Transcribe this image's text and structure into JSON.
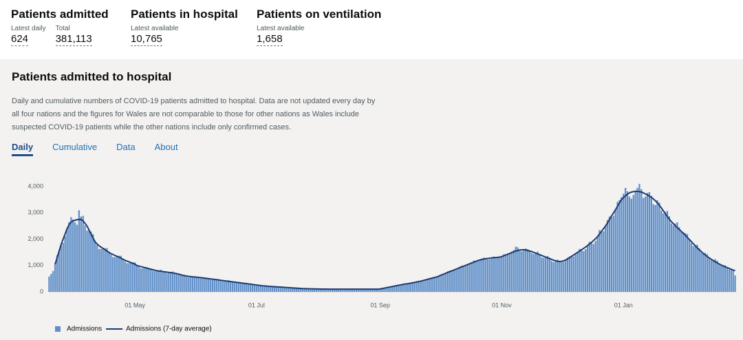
{
  "header": {
    "stats": [
      {
        "title": "Patients admitted",
        "items": [
          {
            "label": "Latest daily",
            "value": "624"
          },
          {
            "label": "Total",
            "value": "381,113"
          }
        ]
      },
      {
        "title": "Patients in hospital",
        "items": [
          {
            "label": "Latest available",
            "value": "10,765"
          }
        ]
      },
      {
        "title": "Patients on ventilation",
        "items": [
          {
            "label": "Latest available",
            "value": "1,658"
          }
        ]
      }
    ]
  },
  "card": {
    "title": "Patients admitted to hospital",
    "description": [
      "Daily and cumulative numbers of COVID-19 patients admitted to hospital. Data are not updated every day by",
      "all four nations and the figures for Wales are not comparable to those for other nations as Wales include",
      "suspected COVID-19 patients while the other nations include only confirmed cases."
    ],
    "tabs": [
      "Daily",
      "Cumulative",
      "Data",
      "About"
    ],
    "active_tab": 0
  },
  "chart_data": {
    "type": "bar",
    "categories": [
      null,
      null,
      null,
      null,
      null,
      null,
      null,
      null,
      null,
      null,
      null,
      null,
      null,
      null,
      null,
      null,
      null,
      null,
      null,
      null,
      null,
      null,
      null,
      null,
      null,
      null,
      null,
      null,
      null,
      null,
      null,
      null,
      null,
      null,
      null,
      null,
      null,
      null,
      null,
      null,
      null,
      null,
      null,
      "01 May",
      null,
      null,
      null,
      null,
      null,
      null,
      null,
      null,
      null,
      null,
      null,
      null,
      null,
      null,
      null,
      null,
      null,
      null,
      null,
      null,
      null,
      null,
      null,
      null,
      null,
      null,
      null,
      null,
      null,
      null,
      null,
      null,
      null,
      null,
      null,
      null,
      null,
      null,
      null,
      null,
      null,
      null,
      null,
      null,
      null,
      null,
      null,
      null,
      null,
      null,
      null,
      null,
      null,
      null,
      null,
      null,
      null,
      null,
      null,
      null,
      "01 Jul",
      null,
      null,
      null,
      null,
      null,
      null,
      null,
      null,
      null,
      null,
      null,
      null,
      null,
      null,
      null,
      null,
      null,
      null,
      null,
      null,
      null,
      null,
      null,
      null,
      null,
      null,
      null,
      null,
      null,
      null,
      null,
      null,
      null,
      null,
      null,
      null,
      null,
      null,
      null,
      null,
      null,
      null,
      null,
      null,
      null,
      null,
      null,
      null,
      null,
      null,
      null,
      null,
      null,
      null,
      null,
      null,
      null,
      null,
      null,
      null,
      null,
      "01 Sep",
      null,
      null,
      null,
      null,
      null,
      null,
      null,
      null,
      null,
      null,
      null,
      null,
      null,
      null,
      null,
      null,
      null,
      null,
      null,
      null,
      null,
      null,
      null,
      null,
      null,
      null,
      null,
      null,
      null,
      null,
      null,
      null,
      null,
      null,
      null,
      null,
      null,
      null,
      null,
      null,
      null,
      null,
      null,
      null,
      null,
      null,
      null,
      null,
      null,
      null,
      null,
      null,
      null,
      null,
      null,
      null,
      null,
      null,
      null,
      null,
      "01 Nov",
      null,
      null,
      null,
      null,
      null,
      null,
      null,
      null,
      null,
      null,
      null,
      null,
      null,
      null,
      null,
      null,
      null,
      null,
      null,
      null,
      null,
      null,
      null,
      null,
      null,
      null,
      null,
      null,
      null,
      null,
      null,
      null,
      null,
      null,
      null,
      null,
      null,
      null,
      null,
      null,
      null,
      null,
      null,
      null,
      null,
      null,
      null,
      null,
      null,
      null,
      null,
      null,
      null,
      null,
      null,
      null,
      null,
      null,
      null,
      null,
      "01 Jan",
      null,
      null,
      null,
      null,
      null,
      null,
      null,
      null,
      null,
      null,
      null,
      null,
      null,
      null,
      null,
      null,
      null,
      null,
      null,
      null,
      null,
      null,
      null,
      null,
      null,
      null,
      null,
      null,
      null,
      null,
      null,
      null,
      null,
      null,
      null,
      null,
      null,
      null,
      null,
      null,
      null,
      null,
      null,
      null,
      null,
      null,
      null,
      null,
      null,
      null,
      null,
      null,
      null,
      null,
      null,
      null
    ],
    "series": [
      {
        "name": "Admissions",
        "type": "bar",
        "color": "#5f8fc9",
        "values": [
          580,
          680,
          790,
          1090,
          1390,
          1580,
          1750,
          1860,
          2110,
          2420,
          2650,
          2840,
          2750,
          2640,
          2550,
          3100,
          2860,
          2890,
          2520,
          2330,
          2370,
          2290,
          2190,
          1940,
          1770,
          1630,
          1630,
          1670,
          1660,
          1660,
          1530,
          1410,
          1320,
          1320,
          1360,
          1370,
          1370,
          1260,
          1160,
          1090,
          1090,
          1120,
          1120,
          1120,
          1020,
          950,
          890,
          900,
          920,
          940,
          900,
          870,
          800,
          780,
          800,
          820,
          840,
          800,
          770,
          710,
          710,
          740,
          770,
          720,
          680,
          640,
          640,
          650,
          650,
          600,
          550,
          560,
          590,
          590,
          560,
          520,
          510,
          530,
          550,
          530,
          500,
          460,
          450,
          470,
          490,
          480,
          450,
          410,
          410,
          430,
          440,
          400,
          370,
          360,
          370,
          380,
          350,
          310,
          310,
          320,
          320,
          290,
          260,
          270,
          270,
          260,
          230,
          220,
          230,
          230,
          210,
          195,
          190,
          195,
          200,
          190,
          170,
          170,
          175,
          175,
          160,
          145,
          145,
          150,
          145,
          130,
          120,
          125,
          130,
          125,
          112,
          110,
          115,
          118,
          110,
          108,
          106,
          100,
          98,
          103,
          106,
          104,
          98,
          95,
          97,
          102,
          104,
          100,
          96,
          95,
          98,
          104,
          102,
          98,
          95,
          97,
          103,
          104,
          100,
          96,
          97,
          100,
          104,
          102,
          97,
          99,
          105,
          120,
          140,
          160,
          180,
          185,
          190,
          210,
          235,
          255,
          270,
          275,
          280,
          295,
          315,
          335,
          350,
          355,
          360,
          380,
          410,
          440,
          450,
          460,
          490,
          520,
          540,
          540,
          560,
          600,
          630,
          640,
          670,
          720,
          780,
          810,
          810,
          820,
          850,
          900,
          960,
          1000,
          990,
          1010,
          1030,
          1070,
          1130,
          1190,
          1170,
          1160,
          1190,
          1260,
          1300,
          1270,
          1230,
          1240,
          1300,
          1340,
          1310,
          1290,
          1300,
          1370,
          1430,
          1420,
          1420,
          1450,
          1530,
          1590,
          1720,
          1690,
          1560,
          1540,
          1600,
          1650,
          1620,
          1530,
          1470,
          1440,
          1490,
          1530,
          1430,
          1310,
          1290,
          1330,
          1360,
          1300,
          1170,
          1130,
          1180,
          1220,
          1160,
          1130,
          1140,
          1220,
          1300,
          1350,
          1360,
          1340,
          1420,
          1520,
          1630,
          1620,
          1550,
          1620,
          1780,
          1900,
          1870,
          1820,
          1930,
          2120,
          2350,
          2310,
          2300,
          2520,
          2730,
          2860,
          2840,
          2890,
          3130,
          3420,
          3490,
          3600,
          3730,
          3950,
          3820,
          3620,
          3540,
          3680,
          3840,
          3950,
          4100,
          3900,
          3570,
          3620,
          3760,
          3790,
          3650,
          3330,
          3300,
          3480,
          3390,
          3090,
          2980,
          3040,
          3070,
          2870,
          2600,
          2520,
          2600,
          2640,
          2450,
          2280,
          2260,
          2230,
          2200,
          2020,
          1850,
          1740,
          1780,
          1790,
          1650,
          1480,
          1440,
          1480,
          1430,
          1300,
          1200,
          1200,
          1240,
          1180,
          1050,
          1000,
          1020,
          1010,
          920,
          850,
          850,
          800,
          624
        ]
      },
      {
        "name": "Admissions (7-day average)",
        "type": "line",
        "color": "#1d3a6e",
        "values": [
          null,
          null,
          null,
          1050,
          1300,
          1550,
          1800,
          2000,
          2200,
          2400,
          2550,
          2650,
          2700,
          2720,
          2740,
          2750,
          2750,
          2700,
          2600,
          2500,
          2350,
          2200,
          2050,
          1900,
          1820,
          1750,
          1700,
          1650,
          1600,
          1550,
          1500,
          1450,
          1420,
          1380,
          1350,
          1320,
          1280,
          1240,
          1200,
          1170,
          1140,
          1110,
          1080,
          1050,
          1000,
          980,
          960,
          940,
          920,
          900,
          880,
          860,
          840,
          820,
          800,
          790,
          780,
          770,
          760,
          750,
          740,
          730,
          720,
          705,
          690,
          670,
          650,
          630,
          610,
          600,
          590,
          580,
          570,
          565,
          555,
          550,
          540,
          530,
          520,
          510,
          500,
          490,
          480,
          470,
          460,
          450,
          440,
          430,
          420,
          410,
          400,
          390,
          380,
          370,
          360,
          350,
          340,
          330,
          320,
          310,
          300,
          290,
          280,
          270,
          260,
          250,
          240,
          230,
          225,
          220,
          210,
          205,
          200,
          195,
          190,
          185,
          180,
          175,
          170,
          165,
          160,
          155,
          150,
          145,
          140,
          135,
          130,
          125,
          122,
          120,
          118,
          116,
          114,
          112,
          110,
          108,
          106,
          105,
          104,
          103,
          102,
          101,
          100,
          100,
          100,
          100,
          100,
          100,
          100,
          100,
          100,
          100,
          100,
          100,
          100,
          100,
          100,
          100,
          100,
          100,
          100,
          100,
          100,
          100,
          100,
          100,
          110,
          125,
          140,
          155,
          170,
          185,
          200,
          215,
          230,
          245,
          260,
          275,
          290,
          300,
          310,
          325,
          340,
          355,
          370,
          385,
          400,
          420,
          440,
          460,
          480,
          500,
          520,
          540,
          560,
          580,
          620,
          650,
          680,
          710,
          740,
          770,
          800,
          830,
          860,
          890,
          920,
          950,
          980,
          1010,
          1040,
          1070,
          1100,
          1130,
          1160,
          1190,
          1210,
          1230,
          1250,
          1260,
          1270,
          1280,
          1290,
          1300,
          1300,
          1310,
          1320,
          1340,
          1370,
          1400,
          1430,
          1460,
          1490,
          1520,
          1550,
          1570,
          1590,
          1600,
          1600,
          1590,
          1570,
          1550,
          1530,
          1500,
          1470,
          1440,
          1410,
          1380,
          1350,
          1320,
          1290,
          1260,
          1230,
          1200,
          1180,
          1160,
          1150,
          1160,
          1180,
          1210,
          1250,
          1300,
          1350,
          1400,
          1450,
          1500,
          1550,
          1600,
          1650,
          1700,
          1760,
          1820,
          1880,
          1950,
          2020,
          2100,
          2200,
          2300,
          2400,
          2500,
          2620,
          2750,
          2880,
          3000,
          3120,
          3250,
          3380,
          3500,
          3580,
          3650,
          3710,
          3760,
          3790,
          3810,
          3820,
          3820,
          3810,
          3790,
          3760,
          3720,
          3680,
          3640,
          3590,
          3530,
          3460,
          3380,
          3290,
          3190,
          3080,
          2970,
          2860,
          2760,
          2670,
          2590,
          2510,
          2440,
          2370,
          2300,
          2230,
          2150,
          2070,
          1990,
          1910,
          1830,
          1750,
          1670,
          1600,
          1530,
          1460,
          1400,
          1340,
          1290,
          1240,
          1190,
          1140,
          1100,
          1060,
          1020,
          980,
          950,
          920,
          890,
          860,
          830,
          800
        ]
      }
    ],
    "ylim": [
      0,
      4290
    ],
    "yticks": [
      0,
      {
        "value": 1000,
        "label": "1,000"
      },
      {
        "value": 2000,
        "label": "2,000"
      },
      {
        "value": 3000,
        "label": "3,000"
      },
      {
        "value": 4000,
        "label": "4,000"
      }
    ],
    "grid": false
  }
}
